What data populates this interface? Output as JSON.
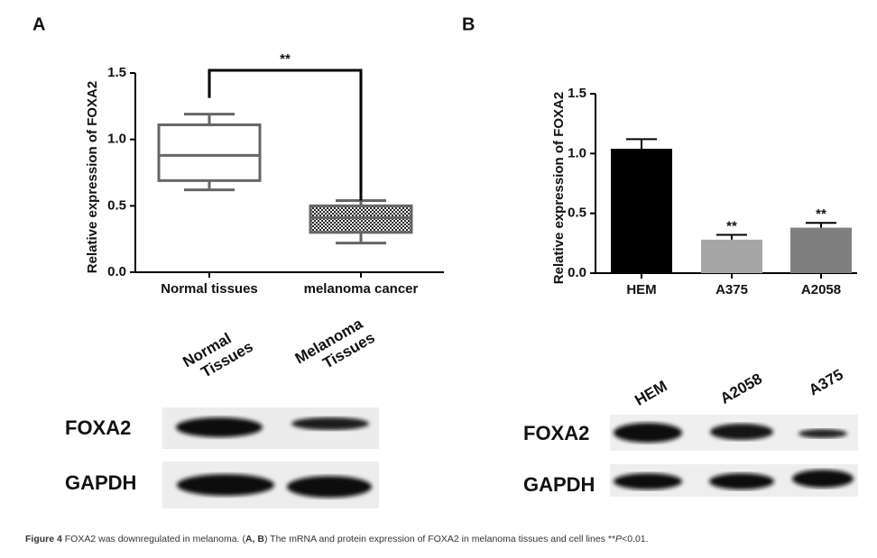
{
  "panel_labels": [
    "A",
    "B"
  ],
  "chart_data": [
    {
      "type": "box",
      "y_label": "Relative expression of FOXA2",
      "categories": [
        "Normal tissues",
        "melanoma cancer"
      ],
      "values": [
        [
          0.62,
          0.69,
          0.88,
          1.11,
          1.19
        ],
        [
          0.22,
          0.3,
          0.41,
          0.5,
          0.54
        ]
      ],
      "ylim": [
        0,
        1.5
      ],
      "yticks": [
        {
          "value": 0,
          "label": "0.0"
        },
        0.5,
        {
          "value": 1,
          "label": "1.0"
        },
        1.5
      ],
      "annotation": "**"
    },
    {
      "type": "bar",
      "y_label": "Relative expression of FOXA2",
      "categories": [
        "HEM",
        "A375",
        "A2058"
      ],
      "values": [
        1.04,
        0.28,
        0.38
      ],
      "errors": [
        0.08,
        0.04,
        0.04
      ],
      "colors": [
        "#000000",
        "#a6a6a6",
        "#7f7f7f"
      ],
      "bar_labels": [
        null,
        "**",
        "**"
      ],
      "ylim": [
        0,
        1.5
      ],
      "yticks": [
        {
          "value": 0,
          "label": "0.0"
        },
        0.5,
        {
          "value": 1,
          "label": "1.0"
        },
        1.5
      ]
    }
  ],
  "blots": [
    {
      "columns": [
        [
          "Normal",
          "Tissues"
        ],
        [
          "Melanoma",
          "Tissues"
        ]
      ],
      "rows": [
        "FOXA2",
        "GAPDH"
      ]
    },
    {
      "columns": [
        [
          "HEM"
        ],
        [
          "A2058"
        ],
        [
          "A375"
        ]
      ],
      "rows": [
        "FOXA2",
        "GAPDH"
      ]
    }
  ],
  "caption": [
    "Figure 4",
    " FOXA2 was downregulated in melanoma. (",
    "A, B",
    ") The mRNA and protein expression of FOXA2 in melanoma tissues and cell lines **",
    "P",
    "<0.01."
  ]
}
